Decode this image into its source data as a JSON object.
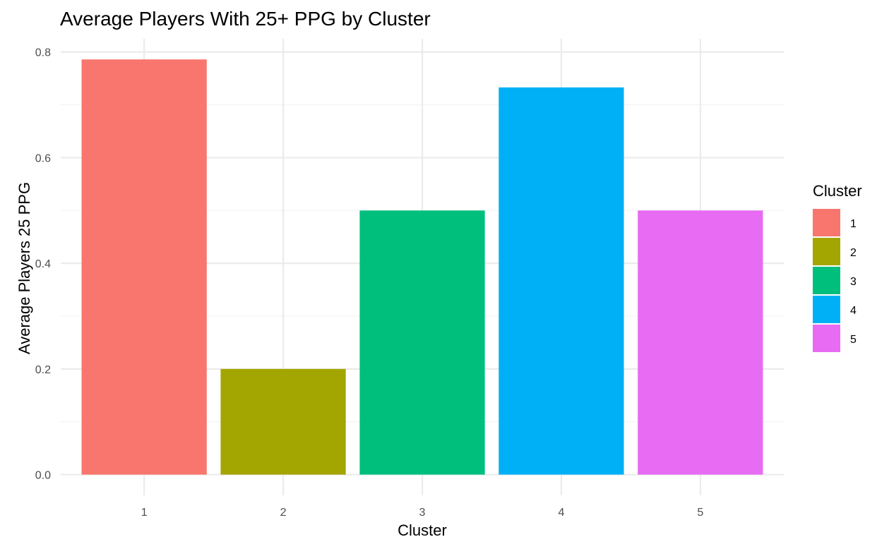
{
  "chart_data": {
    "type": "bar",
    "title": "Average Players With 25+ PPG by Cluster",
    "xlabel": "Cluster",
    "ylabel": "Average Players 25 PPG",
    "categories": [
      "1",
      "2",
      "3",
      "4",
      "5"
    ],
    "values": [
      0.786,
      0.2,
      0.5,
      0.733,
      0.5
    ],
    "colors": [
      "#F8766D",
      "#A3A500",
      "#00BF7D",
      "#00B0F6",
      "#E76BF3"
    ],
    "ylim": [
      -0.0393,
      0.825
    ],
    "yticks": [
      0.0,
      0.2,
      0.4,
      0.6,
      0.8
    ],
    "ytick_labels": [
      "0.0",
      "0.2",
      "0.4",
      "0.6",
      "0.8"
    ],
    "grid": true,
    "legend": {
      "title": "Cluster",
      "position": "right",
      "entries": [
        "1",
        "2",
        "3",
        "4",
        "5"
      ]
    }
  }
}
